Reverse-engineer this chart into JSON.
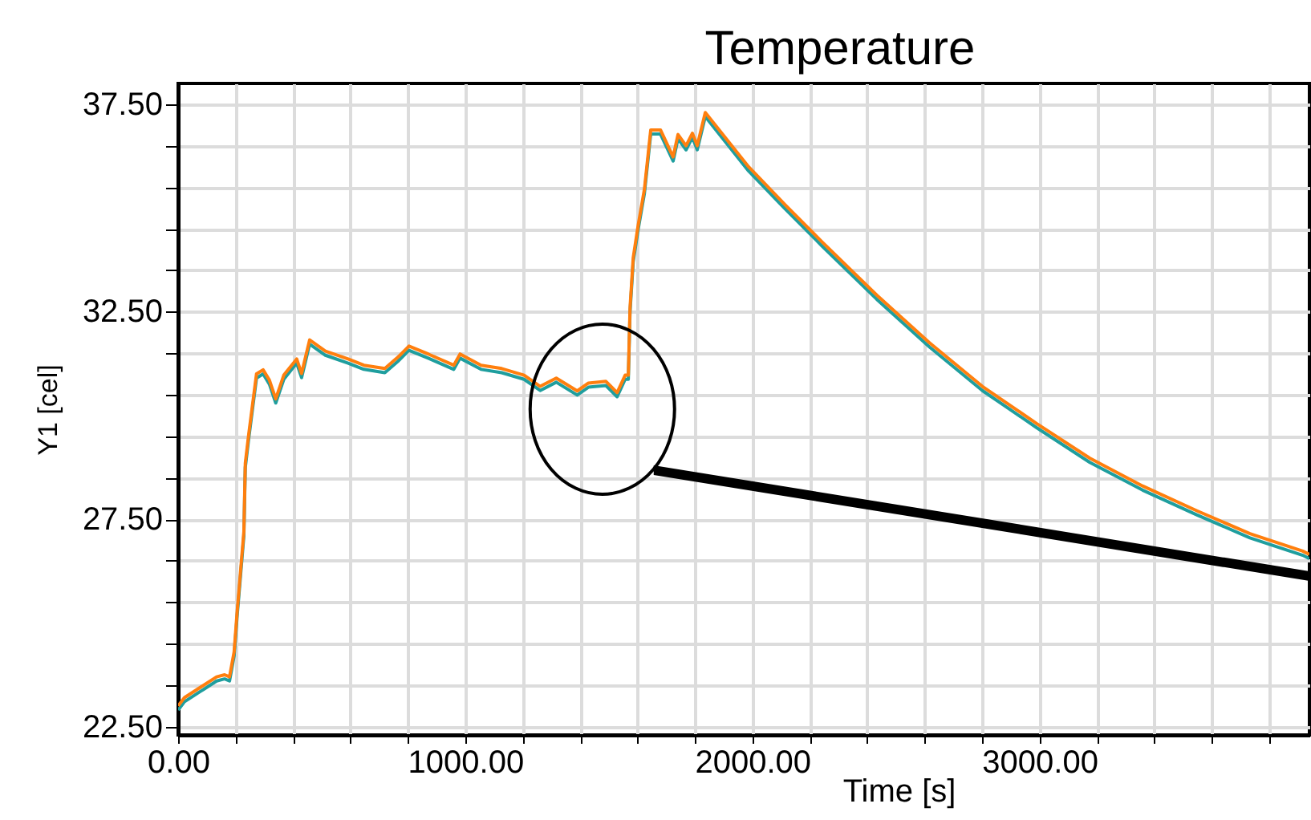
{
  "chart_data": {
    "type": "line",
    "title": "Temperature",
    "xlabel": "Time [s]",
    "ylabel": "Y1 [cel]",
    "x": [
      0,
      22,
      78,
      134,
      162,
      179,
      195,
      206,
      229,
      234,
      246,
      273,
      296,
      318,
      340,
      368,
      413,
      430,
      458,
      513,
      592,
      647,
      720,
      765,
      804,
      871,
      960,
      982,
      1055,
      1127,
      1205,
      1261,
      1317,
      1390,
      1429,
      1490,
      1529,
      1557,
      1568,
      1574,
      1585,
      1602,
      1624,
      1646,
      1680,
      1724,
      1741,
      1769,
      1791,
      1808,
      1836,
      1987,
      2115,
      2243,
      2433,
      2617,
      2801,
      2991,
      3175,
      3359,
      3549,
      3733,
      3917,
      3940
    ],
    "series": [
      {
        "color": "#1f9e9e",
        "values": [
          22.9,
          23.1,
          23.35,
          23.6,
          23.65,
          23.6,
          24.2,
          25.2,
          27.1,
          28.75,
          29.45,
          30.9,
          31.0,
          30.75,
          30.3,
          30.87,
          31.26,
          30.91,
          31.72,
          31.45,
          31.26,
          31.11,
          31.03,
          31.3,
          31.57,
          31.38,
          31.11,
          31.38,
          31.11,
          31.03,
          30.87,
          30.6,
          30.8,
          30.49,
          30.68,
          30.72,
          30.45,
          30.87,
          30.87,
          32.5,
          33.7,
          34.47,
          35.35,
          36.78,
          36.78,
          36.13,
          36.67,
          36.4,
          36.7,
          36.4,
          37.2,
          35.89,
          34.97,
          34.08,
          32.8,
          31.65,
          30.6,
          29.7,
          28.87,
          28.2,
          27.6,
          27.05,
          26.63,
          26.55
        ]
      },
      {
        "color": "#ff7f0e",
        "values": [
          23.0,
          23.2,
          23.45,
          23.7,
          23.75,
          23.7,
          24.3,
          25.3,
          27.2,
          28.85,
          29.55,
          31.0,
          31.1,
          30.85,
          30.4,
          30.97,
          31.36,
          31.01,
          31.82,
          31.55,
          31.36,
          31.21,
          31.13,
          31.4,
          31.67,
          31.48,
          31.21,
          31.48,
          31.21,
          31.13,
          30.97,
          30.7,
          30.9,
          30.59,
          30.78,
          30.82,
          30.55,
          30.97,
          30.97,
          32.6,
          33.8,
          34.57,
          35.45,
          36.88,
          36.88,
          36.23,
          36.77,
          36.5,
          36.8,
          36.5,
          37.3,
          35.99,
          35.07,
          34.18,
          32.9,
          31.75,
          30.7,
          29.8,
          28.97,
          28.3,
          27.7,
          27.15,
          26.73,
          26.65
        ]
      }
    ],
    "xlim": [
      0,
      3940
    ],
    "xticks": [
      {
        "value": 0,
        "label": "0.00"
      },
      {
        "value": 200,
        "label": null
      },
      {
        "value": 400,
        "label": null
      },
      {
        "value": 600,
        "label": null
      },
      {
        "value": 800,
        "label": null
      },
      {
        "value": 1000,
        "label": "1000.00"
      },
      {
        "value": 1200,
        "label": null
      },
      {
        "value": 1400,
        "label": null
      },
      {
        "value": 1600,
        "label": null
      },
      {
        "value": 1800,
        "label": null
      },
      {
        "value": 2000,
        "label": "2000.00"
      },
      {
        "value": 2200,
        "label": null
      },
      {
        "value": 2400,
        "label": null
      },
      {
        "value": 2600,
        "label": null
      },
      {
        "value": 2800,
        "label": null
      },
      {
        "value": 3000,
        "label": "3000.00"
      },
      {
        "value": 3200,
        "label": null
      },
      {
        "value": 3400,
        "label": null
      },
      {
        "value": 3600,
        "label": null
      },
      {
        "value": 3800,
        "label": null
      }
    ],
    "ylim": [
      22.3,
      38.0
    ],
    "yticks": [
      {
        "value": 22.5,
        "label": "22.50"
      },
      {
        "value": 23.5,
        "label": null
      },
      {
        "value": 24.5,
        "label": null
      },
      {
        "value": 25.5,
        "label": null
      },
      {
        "value": 26.5,
        "label": null
      },
      {
        "value": 27.5,
        "label": "27.50"
      },
      {
        "value": 28.5,
        "label": null
      },
      {
        "value": 29.5,
        "label": null
      },
      {
        "value": 30.5,
        "label": null
      },
      {
        "value": 31.5,
        "label": null
      },
      {
        "value": 32.5,
        "label": "32.50"
      },
      {
        "value": 33.5,
        "label": null
      },
      {
        "value": 34.5,
        "label": null
      },
      {
        "value": 35.5,
        "label": null
      },
      {
        "value": 36.5,
        "label": null
      },
      {
        "value": 37.5,
        "label": "37.50"
      }
    ],
    "grid": true,
    "legend": false,
    "marker": "none",
    "line_style": "solid"
  }
}
